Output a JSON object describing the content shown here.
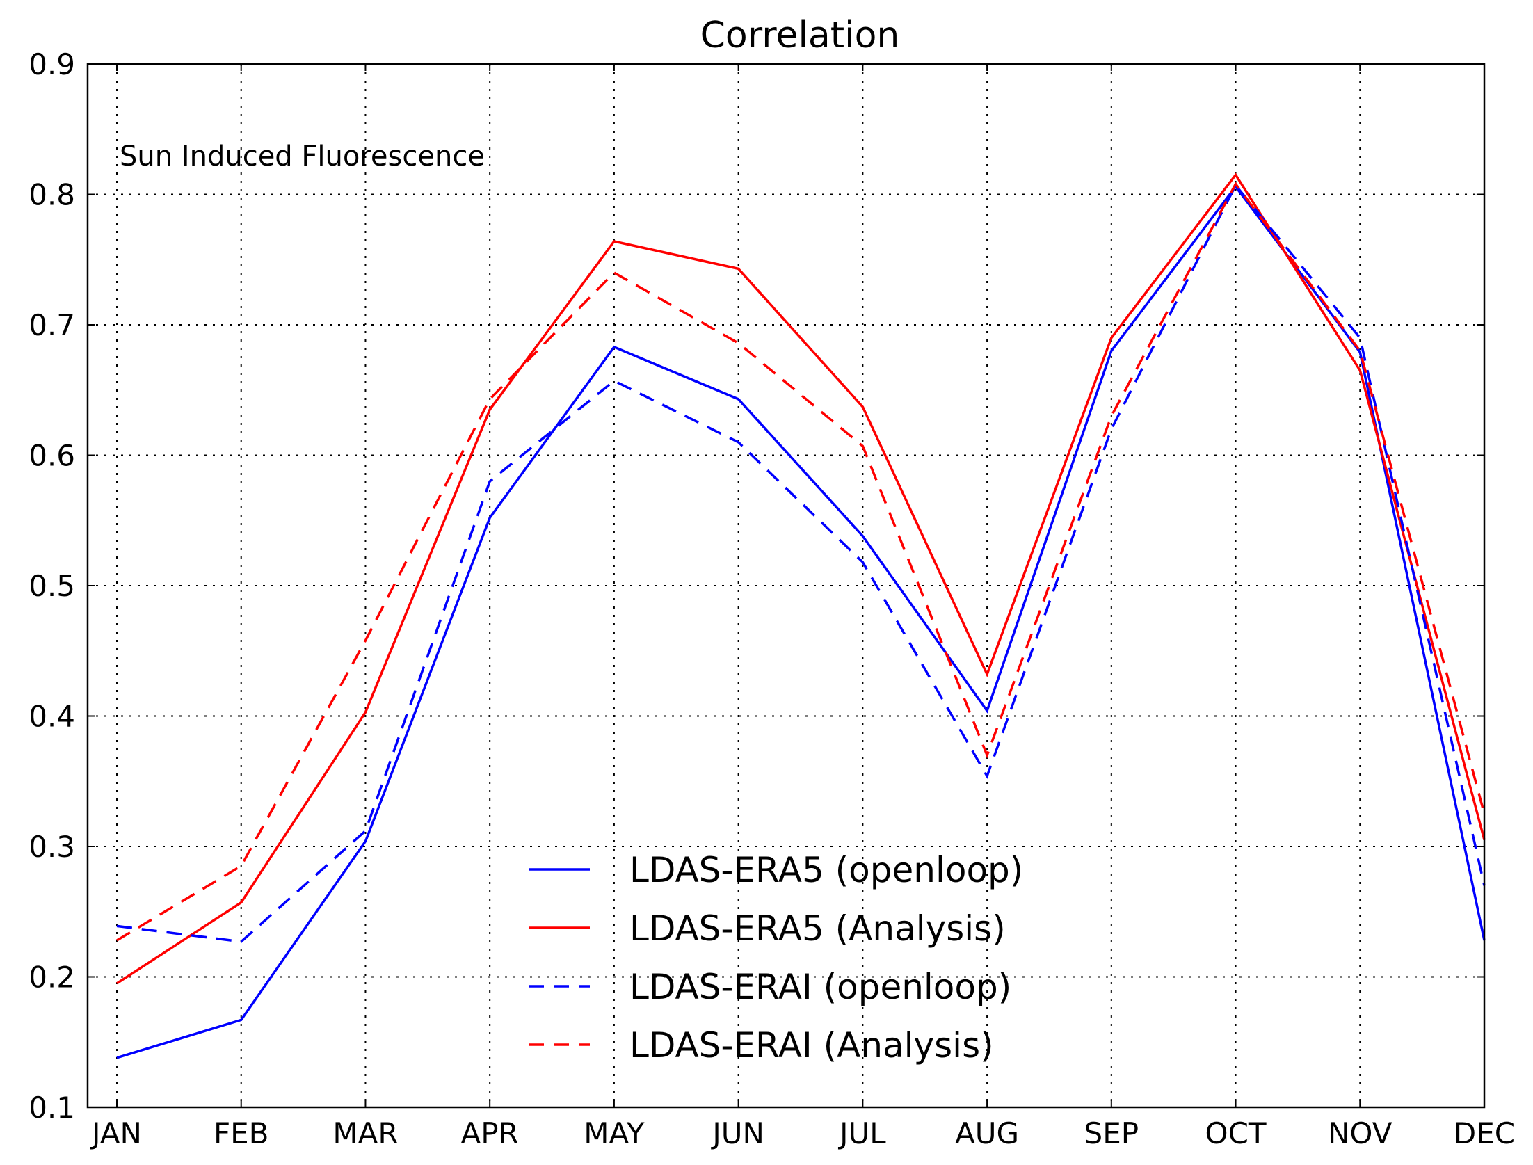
{
  "chart_data": {
    "type": "line",
    "title": "Correlation",
    "xlabel": "",
    "ylabel": "",
    "annotation": "Sun Induced Fluorescence",
    "categories": [
      "JAN",
      "FEB",
      "MAR",
      "APR",
      "MAY",
      "JUN",
      "JUL",
      "AUG",
      "SEP",
      "OCT",
      "NOV",
      "DEC"
    ],
    "ylim": [
      0.1,
      0.9
    ],
    "yticks": [
      0.1,
      0.2,
      0.3,
      0.4,
      0.5,
      0.6,
      0.7,
      0.8,
      0.9
    ],
    "ytick_labels": [
      "0.1",
      "0.2",
      "0.3",
      "0.4",
      "0.5",
      "0.6",
      "0.7",
      "0.8",
      "0.9"
    ],
    "grid": true,
    "legend_position": "bottom-center",
    "series": [
      {
        "name": "LDAS-ERA5 (openloop)",
        "color": "#0000ff",
        "style": "solid",
        "values": [
          0.138,
          0.167,
          0.304,
          0.552,
          0.683,
          0.643,
          0.538,
          0.404,
          0.68,
          0.806,
          0.679,
          0.228
        ]
      },
      {
        "name": "LDAS-ERA5 (Analysis)",
        "color": "#ff0000",
        "style": "solid",
        "values": [
          0.195,
          0.257,
          0.403,
          0.635,
          0.764,
          0.743,
          0.637,
          0.432,
          0.69,
          0.815,
          0.665,
          0.305
        ]
      },
      {
        "name": "LDAS-ERAI (openloop)",
        "color": "#0000ff",
        "style": "dashed",
        "values": [
          0.239,
          0.227,
          0.312,
          0.58,
          0.657,
          0.61,
          0.518,
          0.354,
          0.62,
          0.807,
          0.69,
          0.27
        ]
      },
      {
        "name": "LDAS-ERAI (Analysis)",
        "color": "#ff0000",
        "style": "dashed",
        "values": [
          0.228,
          0.285,
          0.458,
          0.643,
          0.74,
          0.686,
          0.607,
          0.37,
          0.63,
          0.808,
          0.68,
          0.325
        ]
      }
    ]
  }
}
